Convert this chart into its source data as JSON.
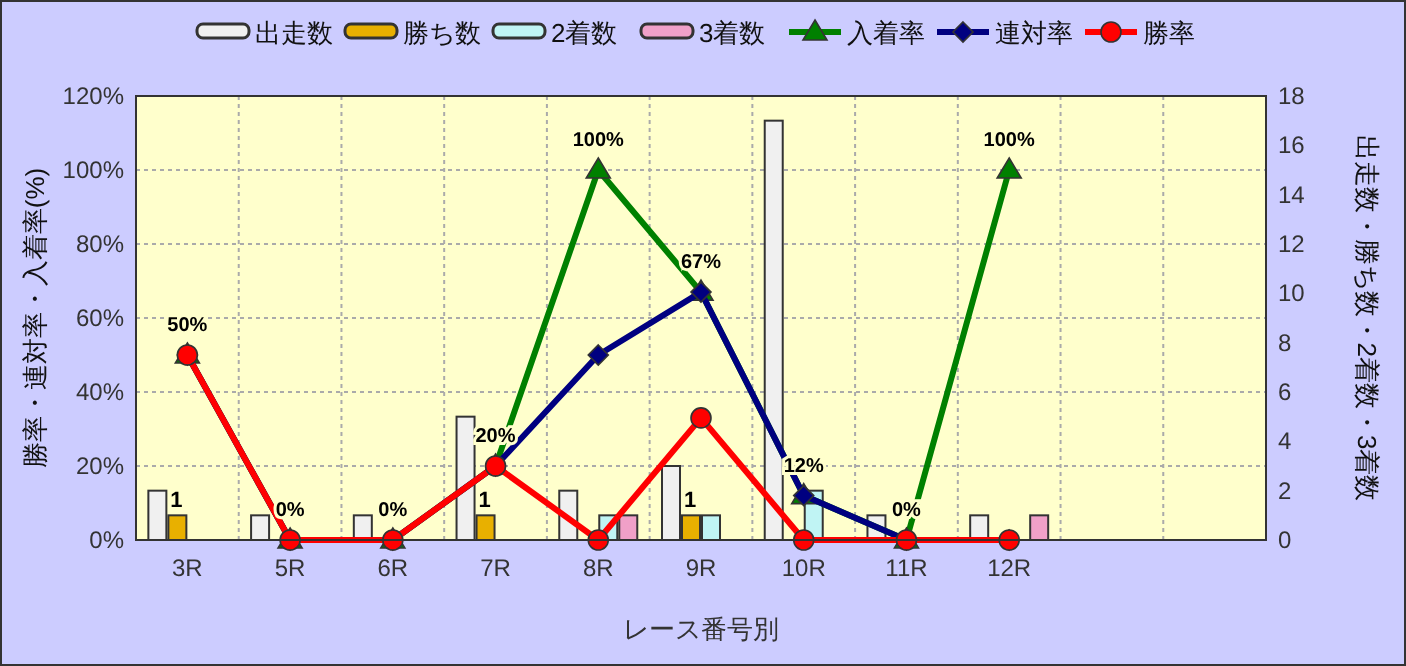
{
  "chart_data": {
    "type": "bar",
    "xlabel": "レース番号別",
    "ylabel": "勝率・連対率・入着率(%)",
    "y2label": "出走数・勝ち数・2着数・3着数",
    "categories": [
      "3R",
      "5R",
      "6R",
      "7R",
      "8R",
      "9R",
      "10R",
      "11R",
      "12R",
      null,
      null
    ],
    "ylim": [
      0,
      120
    ],
    "yticks": [
      {
        "value": 0,
        "label": "0%"
      },
      {
        "value": 20,
        "label": "20%"
      },
      {
        "value": 40,
        "label": "40%"
      },
      {
        "value": 60,
        "label": "60%"
      },
      {
        "value": 80,
        "label": "80%"
      },
      {
        "value": 100,
        "label": "100%"
      },
      {
        "value": 120,
        "label": "120%"
      }
    ],
    "y2lim": [
      0,
      18
    ],
    "y2ticks": [
      0,
      2,
      4,
      6,
      8,
      10,
      12,
      14,
      16,
      18
    ],
    "grid": true,
    "legend": "top",
    "series": [
      {
        "name": "出走数",
        "axis": "y2",
        "color": "#f0f0f0",
        "values": [
          2,
          1,
          1,
          5,
          2,
          3,
          17,
          1,
          1,
          null,
          null
        ]
      },
      {
        "name": "勝ち数",
        "axis": "y2",
        "color": "#e8b000",
        "values": [
          1,
          0,
          0,
          1,
          0,
          1,
          0,
          0,
          0,
          null,
          null
        ],
        "value_labels": [
          "1",
          null,
          null,
          "1",
          null,
          "1",
          null,
          null,
          null,
          null,
          null
        ]
      },
      {
        "name": "2着数",
        "axis": "y2",
        "color": "#c0f4f4",
        "values": [
          0,
          0,
          0,
          0,
          1,
          1,
          2,
          0,
          0,
          null,
          null
        ]
      },
      {
        "name": "3着数",
        "axis": "y2",
        "color": "#f0a0c8",
        "values": [
          0,
          0,
          0,
          0,
          1,
          0,
          0,
          0,
          1,
          null,
          null
        ]
      },
      {
        "name": "入着率",
        "type": "line",
        "color": "#008000",
        "marker": "triangle",
        "values": [
          50,
          0,
          0,
          20,
          100,
          67,
          12,
          0,
          100,
          null,
          null
        ],
        "value_labels": [
          "50%",
          "0%",
          "0%",
          "20%",
          "100%",
          "67%",
          "12%",
          "0%",
          "100%",
          null,
          null
        ]
      },
      {
        "name": "連対率",
        "type": "line",
        "color": "#000080",
        "marker": "diamond",
        "values": [
          50,
          0,
          0,
          20,
          50,
          67,
          12,
          0,
          0,
          null,
          null
        ]
      },
      {
        "name": "勝率",
        "type": "line",
        "color": "#ff0000",
        "marker": "circle",
        "values": [
          50,
          0,
          0,
          20,
          0,
          33,
          0,
          0,
          0,
          null,
          null
        ]
      }
    ]
  }
}
